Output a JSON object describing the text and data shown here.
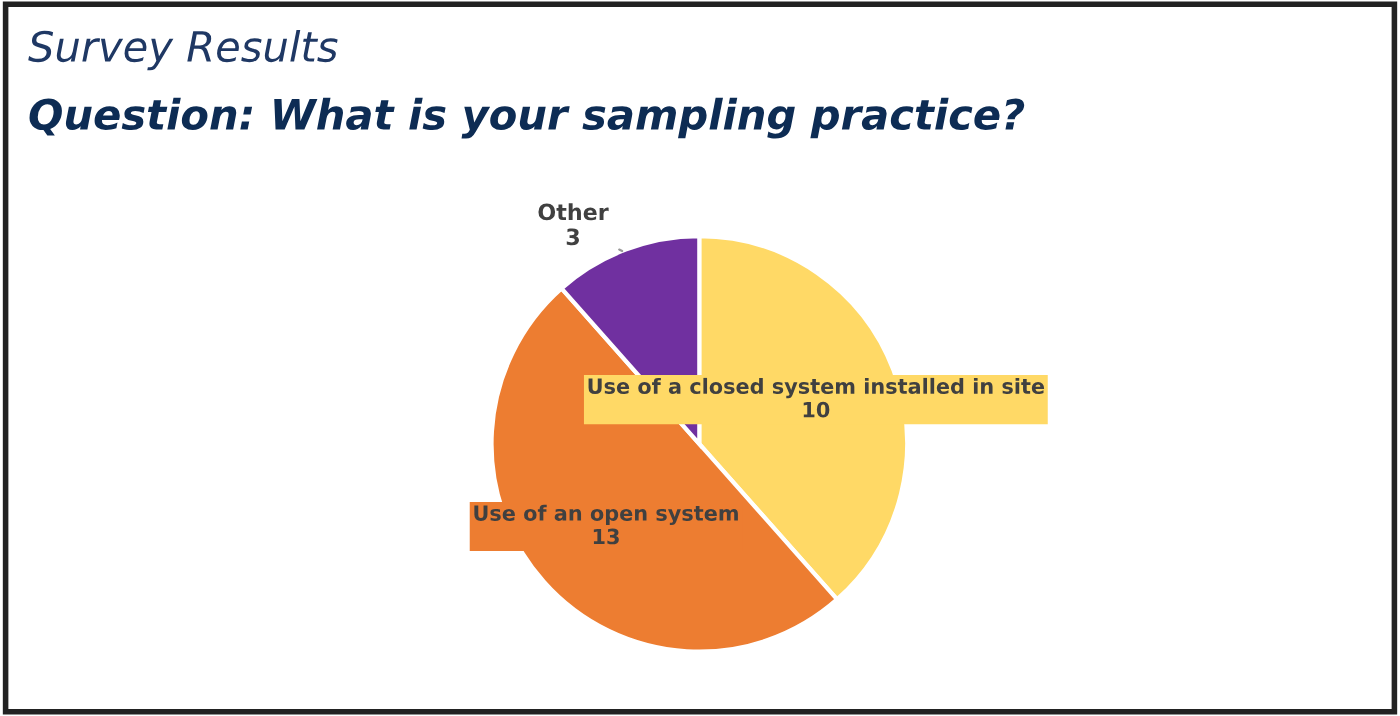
{
  "chart_data": {
    "type": "pie",
    "title": "Survey Results",
    "subtitle": "Question: What is your sampling practice?",
    "categories": [
      "Use of a closed system installed in site",
      "Use of an open system",
      "Other"
    ],
    "values": [
      10,
      13,
      3
    ],
    "colors": [
      "#ffd966",
      "#ed7d31",
      "#7030a0"
    ],
    "data_labels": true
  }
}
